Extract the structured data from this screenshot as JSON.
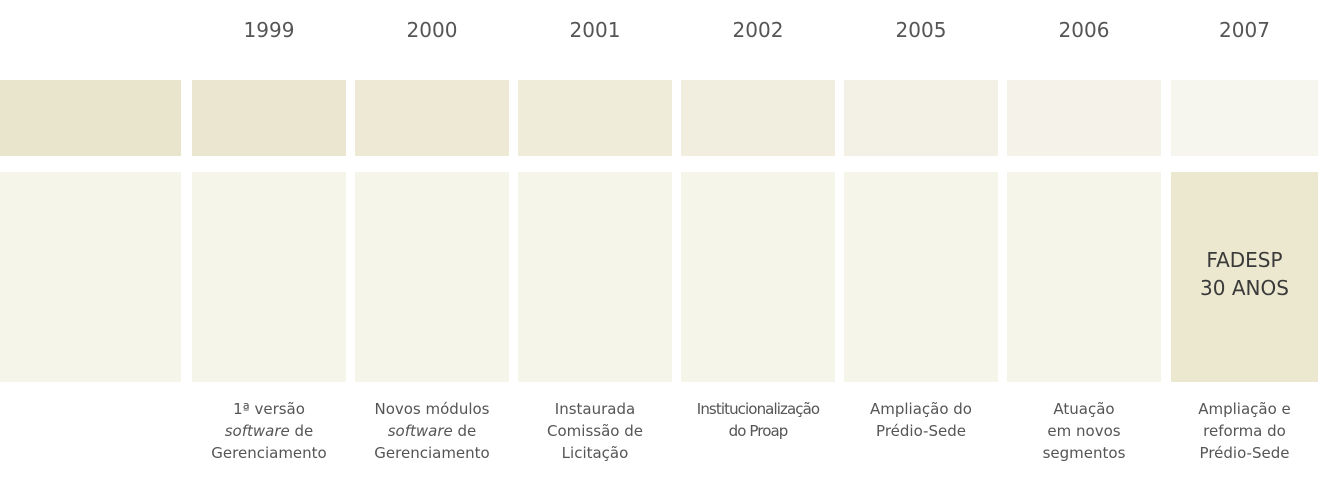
{
  "timeline": {
    "events": [
      {
        "year": "1999",
        "lines": [
          [
            {
              "text": "1ª versão"
            }
          ],
          [
            {
              "text": "software",
              "italic": true
            },
            {
              "text": " de"
            }
          ],
          [
            {
              "text": "Gerenciamento"
            }
          ]
        ]
      },
      {
        "year": "2000",
        "lines": [
          [
            {
              "text": "Novos módulos"
            }
          ],
          [
            {
              "text": "software",
              "italic": true
            },
            {
              "text": " de"
            }
          ],
          [
            {
              "text": "Gerenciamento"
            }
          ]
        ]
      },
      {
        "year": "2001",
        "lines": [
          [
            {
              "text": "Instaurada"
            }
          ],
          [
            {
              "text": "Comissão de"
            }
          ],
          [
            {
              "text": "Licitação"
            }
          ]
        ]
      },
      {
        "year": "2002",
        "lines": [
          [
            {
              "text": "Institucionalização"
            }
          ],
          [
            {
              "text": "do Proap"
            }
          ]
        ]
      },
      {
        "year": "2005",
        "lines": [
          [
            {
              "text": "Ampliação do"
            }
          ],
          [
            {
              "text": "Prédio-Sede"
            }
          ]
        ]
      },
      {
        "year": "2006",
        "lines": [
          [
            {
              "text": "Atuação"
            }
          ],
          [
            {
              "text": "em novos"
            }
          ],
          [
            {
              "text": "segmentos"
            }
          ]
        ]
      },
      {
        "year": "2007",
        "lines": [
          [
            {
              "text": "Ampliação e"
            }
          ],
          [
            {
              "text": "reforma do"
            }
          ],
          [
            {
              "text": "Prédio-Sede"
            }
          ]
        ]
      }
    ],
    "highlight": [
      "FADESP",
      "30 ANOS"
    ]
  }
}
